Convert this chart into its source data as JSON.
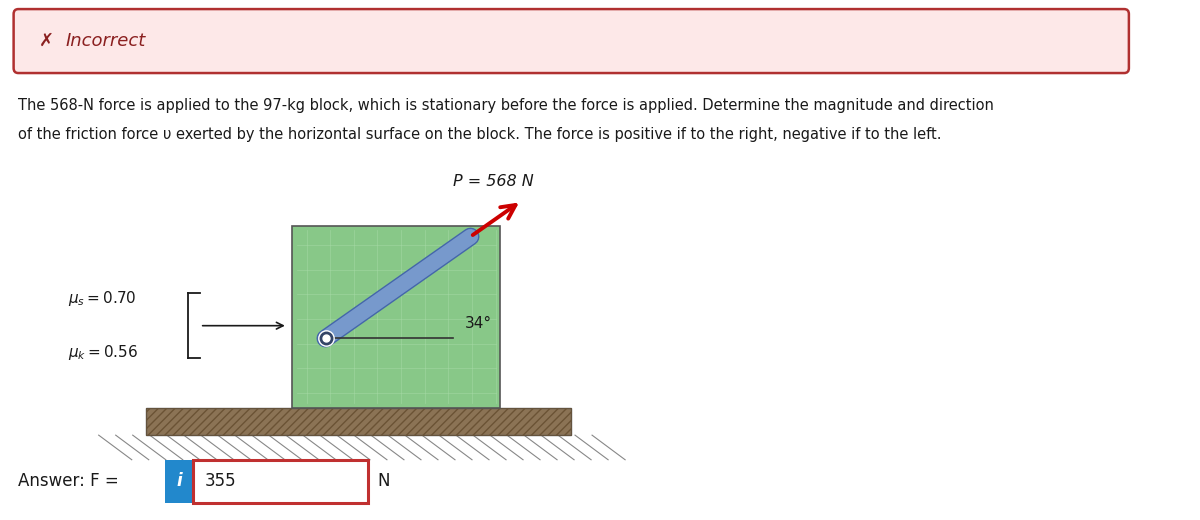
{
  "incorrect_banner_bg": "#fde8e8",
  "incorrect_banner_border": "#b03030",
  "incorrect_text": "Incorrect",
  "incorrect_x_color": "#8b2020",
  "problem_text_line1": "The 568-N force is applied to the 97-kg block, which is stationary before the force is applied. Determine the magnitude and direction",
  "problem_text_line2": "of the friction force υ exerted by the horizontal surface on the block. The force is positive if to the right, negative if to the left.",
  "force_label": "P = 568 N",
  "angle_label": "34°",
  "answer_label": "Answer: F =",
  "answer_value": "355",
  "answer_unit": "N",
  "block_color": "#88c888",
  "block_edge_color": "#555555",
  "ground_top_color": "#8b7355",
  "ground_hatch_color": "#6b5335",
  "rod_color": "#7799cc",
  "rod_edge_color": "#4466aa",
  "pivot_color": "#334466",
  "arrow_color": "#cc0000",
  "ref_line_color": "#333333",
  "bg_color": "#ffffff",
  "text_color": "#1a1a1a",
  "blue_btn_color": "#2288cc",
  "ans_box_border": "#c03030"
}
